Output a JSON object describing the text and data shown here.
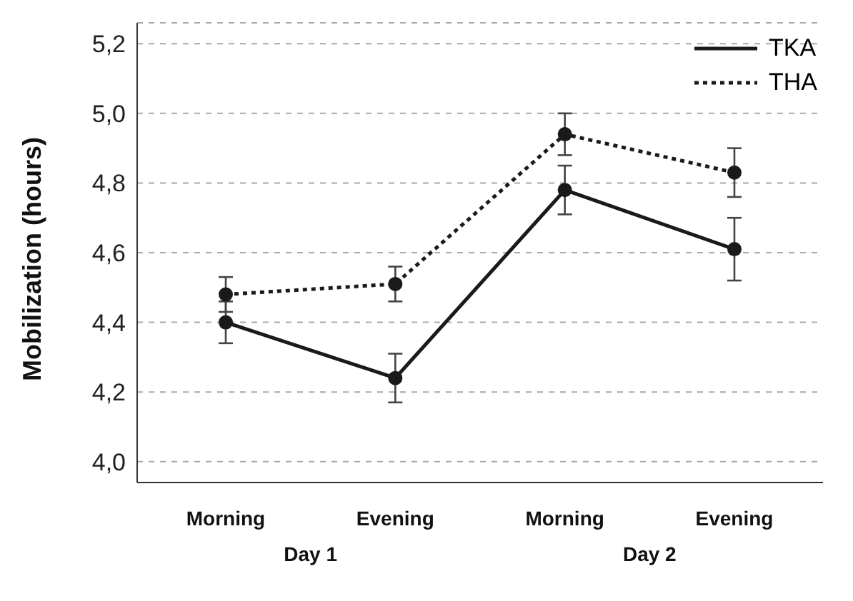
{
  "chart_data": {
    "type": "line",
    "ylabel": "Mobilization (hours)",
    "categories": [
      "Morning",
      "Evening",
      "Morning",
      "Evening"
    ],
    "annotations": [
      "Day 1",
      "Day 2"
    ],
    "series": [
      {
        "name": "TKA",
        "color": "#1a1a1a",
        "line_style": "solid",
        "values": [
          4.4,
          4.24,
          4.78,
          4.61
        ],
        "errors": [
          0.06,
          0.07,
          0.07,
          0.09
        ]
      },
      {
        "name": "THA",
        "color": "#1a1a1a",
        "line_style": "dotted",
        "values": [
          4.48,
          4.51,
          4.94,
          4.83
        ],
        "errors": [
          0.05,
          0.05,
          0.06,
          0.07
        ]
      }
    ],
    "ylim": [
      3.94,
      5.26
    ],
    "yticks": [
      {
        "value": 4.0,
        "label": "4,0"
      },
      {
        "value": 4.2,
        "label": "4,2"
      },
      {
        "value": 4.4,
        "label": "4,4"
      },
      {
        "value": 4.6,
        "label": "4,6"
      },
      {
        "value": 4.8,
        "label": "4,8"
      },
      {
        "value": 5.0,
        "label": "5,0"
      },
      {
        "value": 5.2,
        "label": "5,2"
      }
    ],
    "grid": "y",
    "legend": "top right",
    "marker": "circle"
  }
}
